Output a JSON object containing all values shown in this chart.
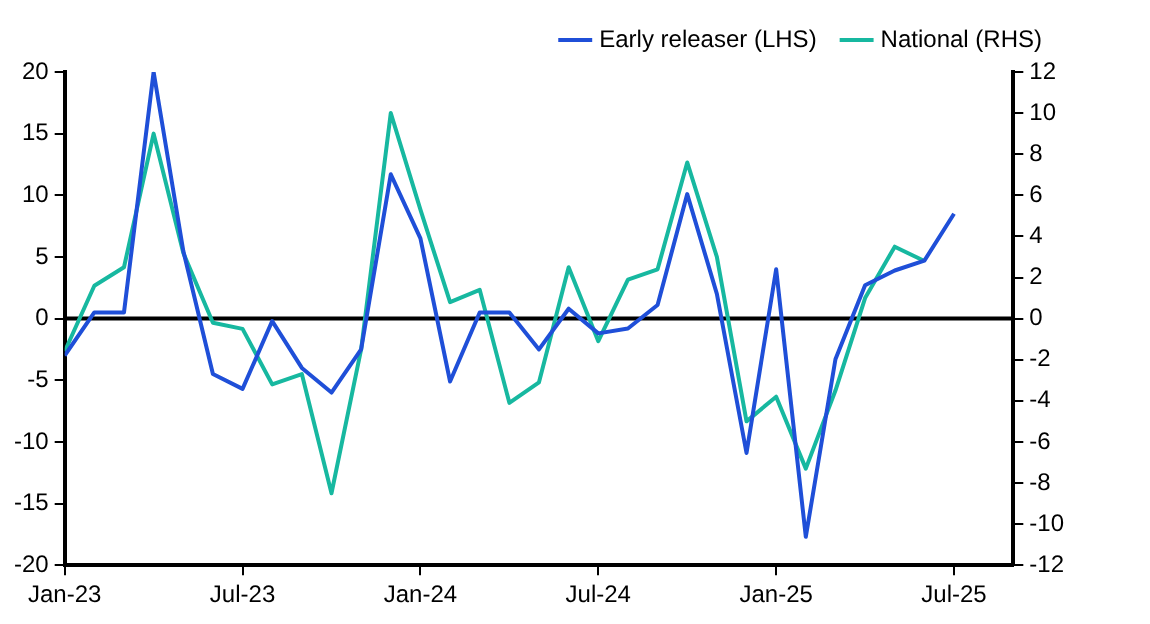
{
  "chart_data": {
    "type": "line",
    "x": [
      "2023-01",
      "2023-02",
      "2023-03",
      "2023-04",
      "2023-05",
      "2023-06",
      "2023-07",
      "2023-08",
      "2023-09",
      "2023-10",
      "2023-11",
      "2023-12",
      "2024-01",
      "2024-02",
      "2024-03",
      "2024-04",
      "2024-05",
      "2024-06",
      "2024-07",
      "2024-08",
      "2024-09",
      "2024-10",
      "2024-11",
      "2024-12",
      "2025-01",
      "2025-02",
      "2025-03",
      "2025-04",
      "2025-05",
      "2025-06",
      "2025-07"
    ],
    "series": [
      {
        "name": "Early releaser (LHS)",
        "color": "#1f4fd8",
        "values": [
          -3,
          0.5,
          0.5,
          20,
          5.5,
          -4.5,
          -5.7,
          -0.2,
          -4,
          -6,
          -2.5,
          11.7,
          6.5,
          -5.1,
          0.5,
          0.5,
          -2.5,
          0.8,
          -1.2,
          -0.8,
          1.1,
          10.1,
          2,
          -10.9,
          4,
          -17.7,
          -3.3,
          2.7,
          3.9,
          4.7,
          8.5
        ]
      },
      {
        "name": "National (RHS)",
        "color": "#17b8a0",
        "axis": "y2",
        "values": [
          -1.6,
          1.6,
          2.5,
          9,
          3.2,
          -0.2,
          -0.5,
          -3.2,
          -2.7,
          -8.5,
          -1.5,
          10,
          5.3,
          0.8,
          1.4,
          -4.1,
          -3.1,
          2.5,
          -1.1,
          1.9,
          2.4,
          7.6,
          3,
          -5,
          -3.8,
          -7.3,
          -3.5,
          1,
          3.5,
          2.8,
          null
        ]
      }
    ],
    "xlim": [
      "2023-01",
      "2025-09"
    ],
    "xticks": [
      {
        "value": "2023-01",
        "label": "Jan-23"
      },
      {
        "value": "2023-07",
        "label": "Jul-23"
      },
      {
        "value": "2024-01",
        "label": "Jan-24"
      },
      {
        "value": "2024-07",
        "label": "Jul-24"
      },
      {
        "value": "2025-01",
        "label": "Jan-25"
      },
      {
        "value": "2025-07",
        "label": "Jul-25"
      }
    ],
    "ylim": [
      -20,
      20
    ],
    "yticks": [
      -20,
      -15,
      -10,
      -5,
      0,
      5,
      10,
      15,
      20
    ],
    "y2lim": [
      -12,
      12
    ],
    "y2ticks": [
      -12,
      -10,
      -8,
      -6,
      -4,
      -2,
      0,
      2,
      4,
      6,
      8,
      10,
      12
    ],
    "ref_lines": [
      {
        "axis": "y",
        "value": 0,
        "color": "#000000"
      }
    ],
    "grid": false,
    "legend": "top",
    "marker": "none",
    "line_style": "solid"
  }
}
